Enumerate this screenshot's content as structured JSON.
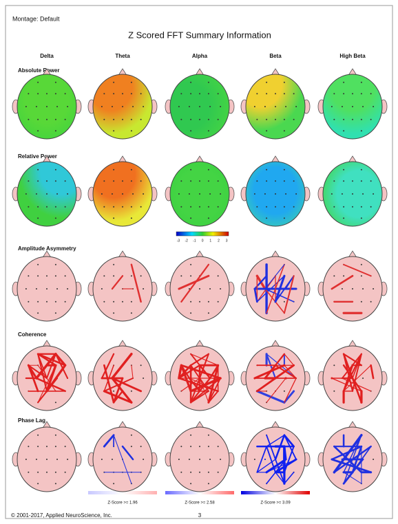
{
  "header": {
    "montage": "Montage: Default",
    "title": "Z Scored FFT Summary Information"
  },
  "columns": [
    "Delta",
    "Theta",
    "Alpha",
    "Beta",
    "High Beta"
  ],
  "rows": [
    "Absolute Power",
    "Relative Power",
    "Amplitude Asymmetry",
    "Coherence",
    "Phase Lag"
  ],
  "scale": {
    "labels": [
      "-3",
      "-2",
      "-1",
      "0",
      "1",
      "2",
      "3"
    ]
  },
  "legends": [
    "Z-Score >= 1.96",
    "Z-Score >= 2.58",
    "Z-Score >= 3.09"
  ],
  "footer": {
    "copyright": "© 2001-2017, Applied NeuroScience, Inc.",
    "page": "3"
  }
}
